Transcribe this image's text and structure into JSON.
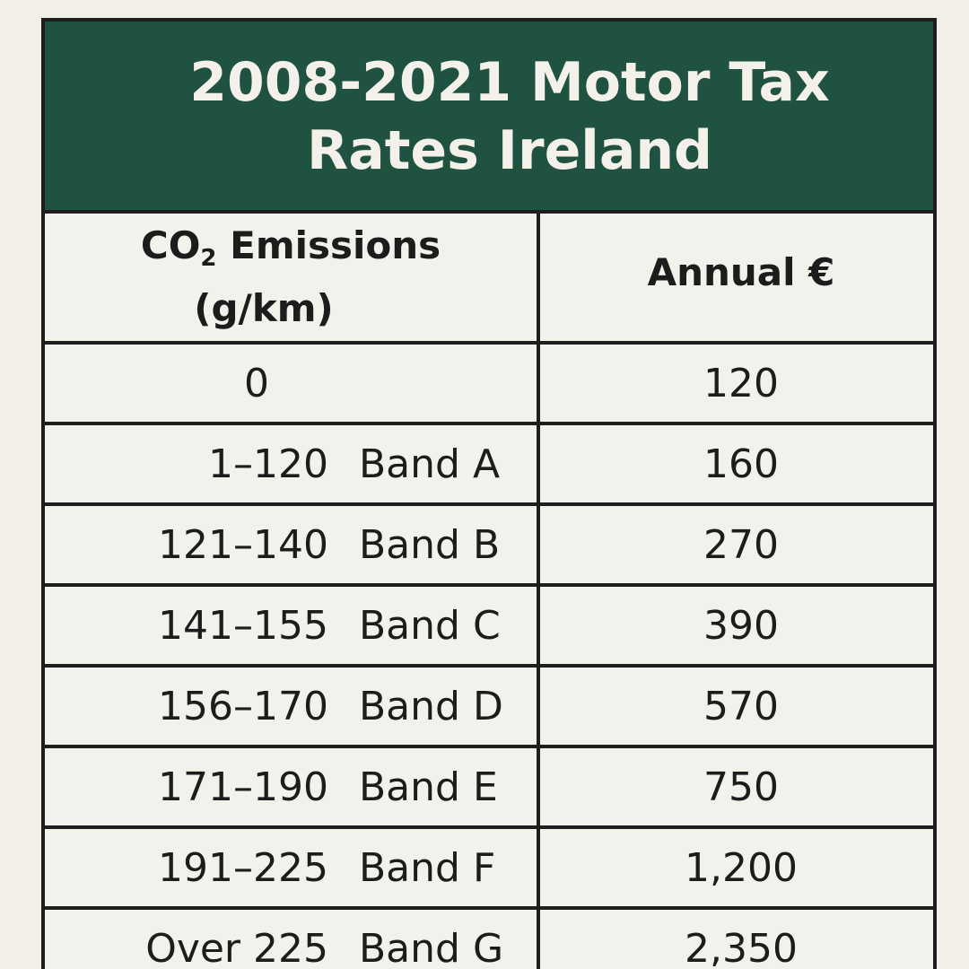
{
  "title": {
    "line1": "2008-2021 Motor Tax",
    "line2": "Rates Ireland"
  },
  "header": {
    "col1_prefix": "CO",
    "col1_sub": "2",
    "col1_suffix": " Emissions",
    "col1_line2": "(g/km)",
    "col2": "Annual €"
  },
  "rows": [
    {
      "range": "0",
      "band": "",
      "annual": "120"
    },
    {
      "range": "1–120",
      "band": "Band A",
      "annual": "160"
    },
    {
      "range": "121–140",
      "band": "Band B",
      "annual": "270"
    },
    {
      "range": "141–155",
      "band": "Band C",
      "annual": "390"
    },
    {
      "range": "156–170",
      "band": "Band D",
      "annual": "570"
    },
    {
      "range": "171–190",
      "band": "Band E",
      "annual": "750"
    },
    {
      "range": "191–225",
      "band": "Band F",
      "annual": "1,200"
    },
    {
      "range": "Over 225",
      "band": "Band G",
      "annual": "2,350"
    }
  ],
  "colors": {
    "header_bg": "#1f5240",
    "page_bg": "#f2efe8",
    "border": "#1e1e1e"
  }
}
